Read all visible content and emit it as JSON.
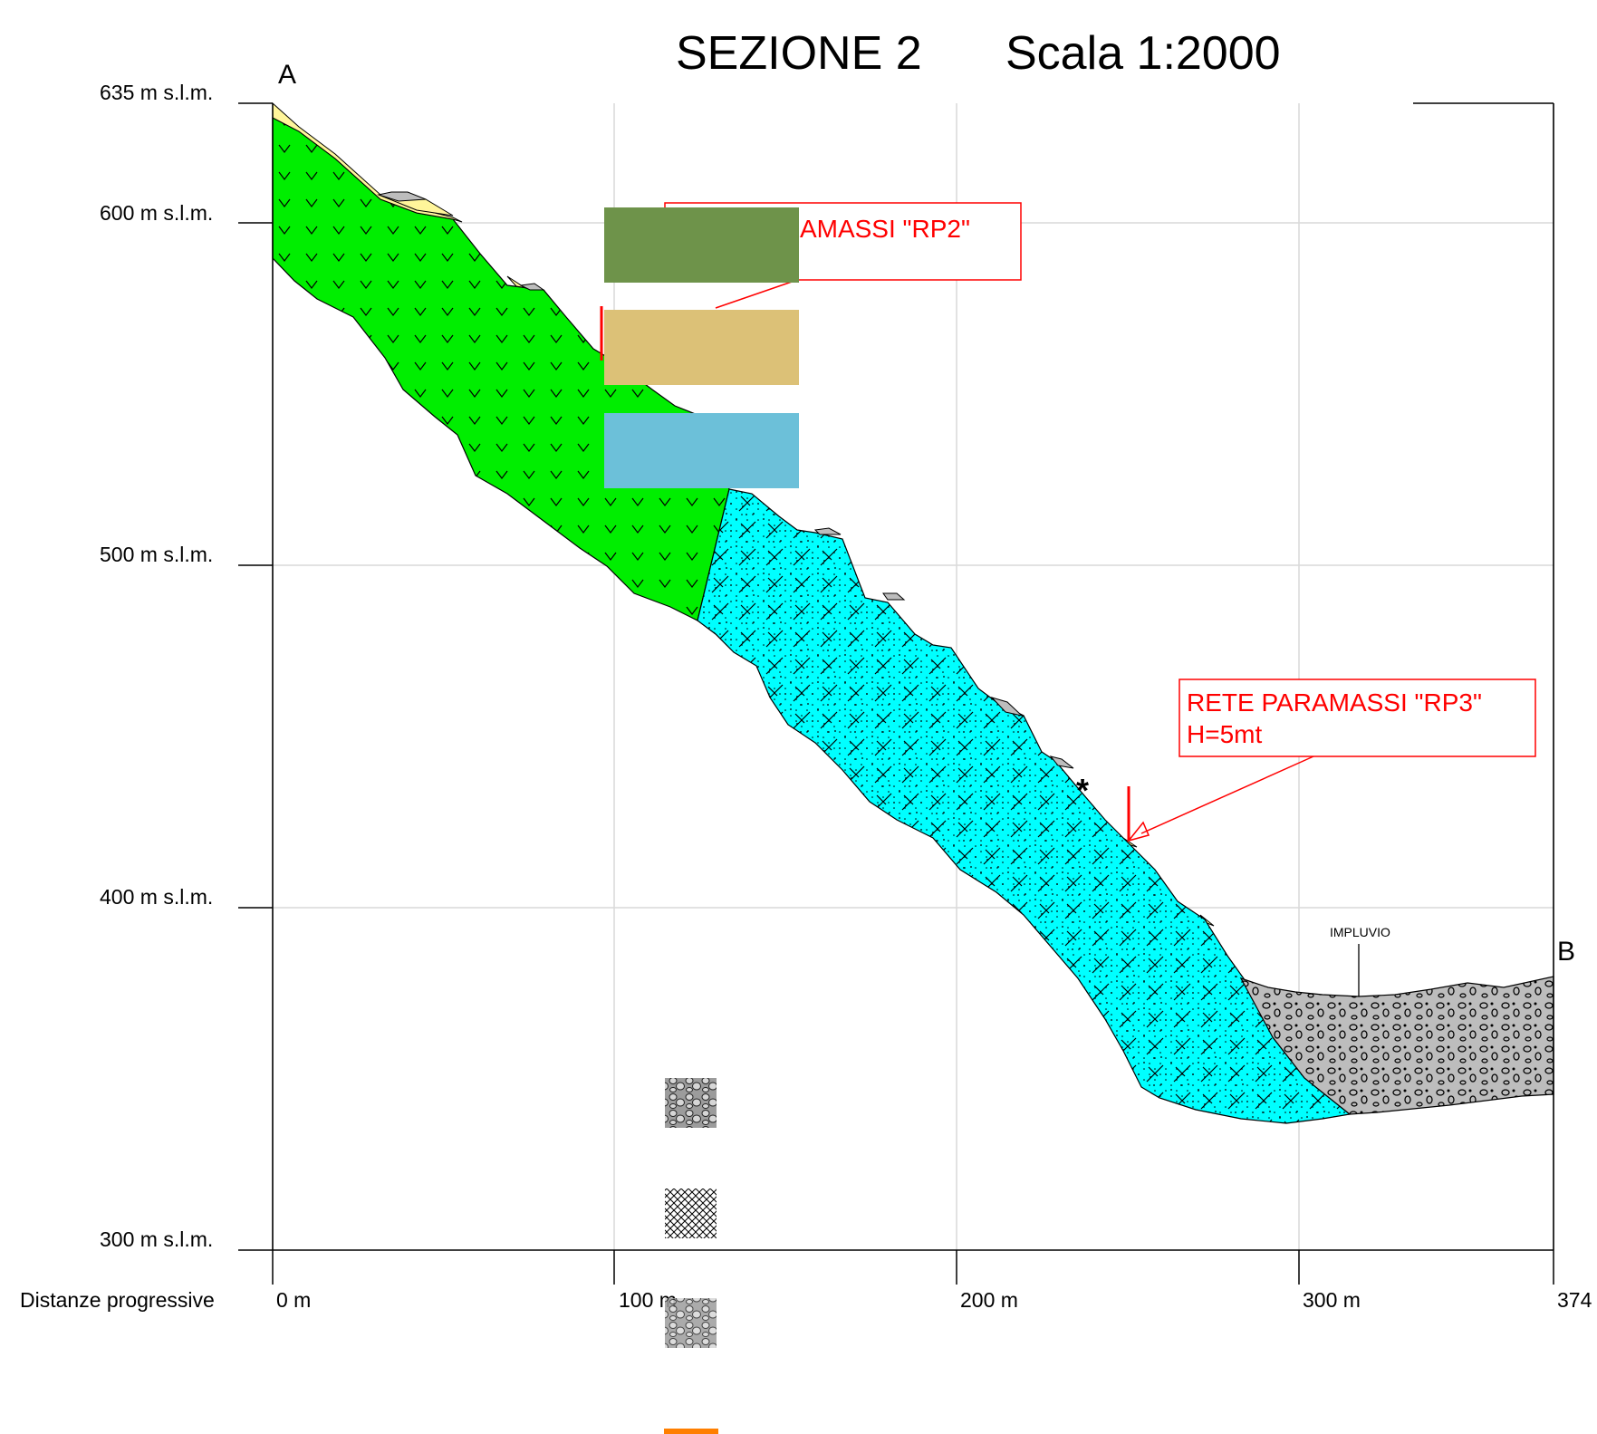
{
  "title": "SEZIONE 2",
  "scale": "Scala 1:2000",
  "points": {
    "start": "A",
    "end": "B"
  },
  "elevation_labels": [
    "635 m s.l.m.",
    "600 m s.l.m.",
    "500 m s.l.m.",
    "400 m s.l.m.",
    "300 m s.l.m."
  ],
  "distance_caption": "Distanze progressive",
  "distance_labels": [
    "0 m",
    "100 m",
    "200 m",
    "300 m",
    "374"
  ],
  "annotations": {
    "rp2_label": "RETE PARAMASSI \"RP2\"",
    "rp3_label": "RETE PARAMASSI \"RP3\"",
    "rp3_height": "H=5mt",
    "impluvio": "IMPLUVIO",
    "star": "*"
  },
  "colors": {
    "unit_green": "#00ee00",
    "unit_cyan": "#00ffff",
    "unit_yellow": "#fff59a",
    "unit_gray": "#bdbdbd",
    "legend_olive": "#6e934a",
    "legend_tan": "#dcc177",
    "legend_blue": "#6cc0d9",
    "legend_orange": "#ff7f00",
    "annotation": "#ff0000"
  },
  "icons": [
    "rockfall-net-marker",
    "debris-hatch-swatch",
    "crosshatch-swatch",
    "gravel-swatch"
  ]
}
